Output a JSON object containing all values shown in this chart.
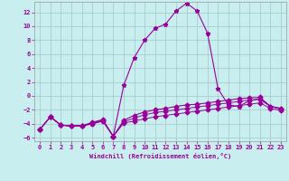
{
  "bg_color": "#c8eef0",
  "line_color": "#990099",
  "grid_color": "#aacccc",
  "xlabel": "Windchill (Refroidissement éolien,°C)",
  "xlim": [
    -0.5,
    23.5
  ],
  "ylim": [
    -6.5,
    13.5
  ],
  "yticks": [
    -6,
    -4,
    -2,
    0,
    2,
    4,
    6,
    8,
    10,
    12
  ],
  "xticks": [
    0,
    1,
    2,
    3,
    4,
    5,
    6,
    7,
    8,
    9,
    10,
    11,
    12,
    13,
    14,
    15,
    16,
    17,
    18,
    19,
    20,
    21,
    22,
    23
  ],
  "series": [
    [
      0,
      1,
      2,
      3,
      4,
      5,
      6,
      7,
      8,
      9,
      10,
      11,
      12,
      13,
      14,
      15,
      16,
      17,
      18,
      19,
      20,
      21,
      22,
      23
    ],
    [
      -4.8,
      -3.0,
      -4.2,
      -4.3,
      -4.3,
      -4.0,
      -3.6,
      -5.8,
      1.5,
      5.5,
      8.0,
      9.7,
      10.3,
      12.2,
      13.3,
      12.2,
      9.0,
      1.0,
      -1.3,
      -1.5,
      -0.7,
      -0.4,
      -1.5,
      -1.8
    ],
    [
      -4.8,
      -3.0,
      -4.2,
      -4.3,
      -4.3,
      -3.8,
      -3.4,
      -5.8,
      -3.5,
      -2.8,
      -2.3,
      -2.0,
      -1.8,
      -1.5,
      -1.3,
      -1.2,
      -1.0,
      -0.8,
      -0.6,
      -0.4,
      -0.3,
      -0.2,
      -1.5,
      -1.8
    ],
    [
      -4.8,
      -3.0,
      -4.2,
      -4.3,
      -4.3,
      -3.9,
      -3.5,
      -5.8,
      -3.7,
      -3.2,
      -2.7,
      -2.4,
      -2.2,
      -2.0,
      -1.8,
      -1.6,
      -1.4,
      -1.2,
      -1.0,
      -0.8,
      -0.6,
      -0.5,
      -1.5,
      -1.9
    ],
    [
      -4.8,
      -3.0,
      -4.2,
      -4.3,
      -4.3,
      -4.0,
      -3.6,
      -5.8,
      -3.9,
      -3.6,
      -3.3,
      -3.0,
      -2.8,
      -2.6,
      -2.4,
      -2.2,
      -2.0,
      -1.8,
      -1.6,
      -1.4,
      -1.2,
      -1.0,
      -1.8,
      -2.1
    ]
  ],
  "marker_series": [
    0
  ],
  "figsize": [
    3.2,
    2.0
  ],
  "dpi": 100
}
